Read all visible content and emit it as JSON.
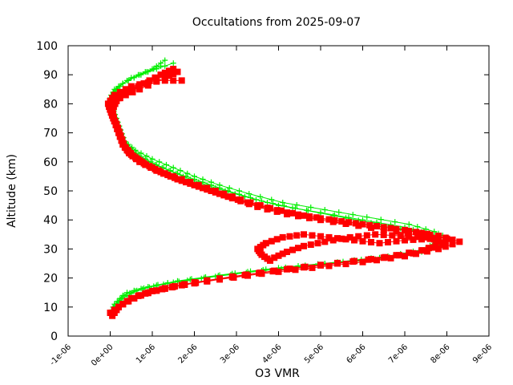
{
  "chart_data": {
    "type": "scatter",
    "title": "Occultations from 2025-09-07",
    "xlabel": "O3 VMR",
    "ylabel": "Altitude (km)",
    "xlim": [
      -1e-06,
      9e-06
    ],
    "ylim": [
      0,
      100
    ],
    "xticks": [
      -1e-06,
      0,
      1e-06,
      2e-06,
      3e-06,
      4e-06,
      5e-06,
      6e-06,
      7e-06,
      8e-06,
      9e-06
    ],
    "xtick_labels": [
      "-1e-06",
      "0e+00",
      "1e-06",
      "2e-06",
      "3e-06",
      "4e-06",
      "5e-06",
      "6e-06",
      "7e-06",
      "8e-06",
      "9e-06"
    ],
    "yticks": [
      0,
      10,
      20,
      30,
      40,
      50,
      60,
      70,
      80,
      90,
      100
    ],
    "ytick_labels": [
      "0",
      "10",
      "20",
      "30",
      "40",
      "50",
      "60",
      "70",
      "80",
      "90",
      "100"
    ],
    "series": [
      {
        "name": "profiles-green",
        "marker": "plus",
        "color": "#00ee00",
        "profiles": [
          {
            "points": [
              [
                0.0,
                8
              ],
              [
                1e-07,
                11
              ],
              [
                3e-07,
                14
              ],
              [
                8e-07,
                16.5
              ],
              [
                1.5e-06,
                18.5
              ],
              [
                2.5e-06,
                20.5
              ],
              [
                3.6e-06,
                22.5
              ],
              [
                5e-06,
                24.5
              ],
              [
                6.3e-06,
                26.5
              ],
              [
                7.3e-06,
                28.5
              ],
              [
                7.8e-06,
                31
              ],
              [
                7.9e-06,
                33
              ],
              [
                7.6e-06,
                35
              ],
              [
                7e-06,
                37.5
              ],
              [
                6e-06,
                40
              ],
              [
                5e-06,
                42.5
              ],
              [
                4e-06,
                45
              ],
              [
                3.2e-06,
                48
              ],
              [
                2.5e-06,
                51
              ],
              [
                1.9e-06,
                54
              ],
              [
                1.4e-06,
                57
              ],
              [
                9e-07,
                60
              ],
              [
                5.5e-07,
                63
              ],
              [
                3.5e-07,
                66
              ],
              [
                2.5e-07,
                70
              ],
              [
                1.5e-07,
                74
              ],
              [
                5e-08,
                78
              ],
              [
                0.0,
                82
              ],
              [
                1e-07,
                85
              ],
              [
                4e-07,
                88
              ],
              [
                9e-07,
                91
              ],
              [
                1.5e-06,
                94
              ]
            ]
          },
          {
            "points": [
              [
                5e-08,
                9
              ],
              [
                2e-07,
                12
              ],
              [
                4e-07,
                15
              ],
              [
                9e-07,
                17
              ],
              [
                1.6e-06,
                19
              ],
              [
                2.6e-06,
                21
              ],
              [
                3.7e-06,
                23
              ],
              [
                5.1e-06,
                25
              ],
              [
                6.4e-06,
                27
              ],
              [
                7.4e-06,
                29
              ],
              [
                7.9e-06,
                32
              ],
              [
                8e-06,
                34
              ],
              [
                7.7e-06,
                36
              ],
              [
                7.1e-06,
                38.5
              ],
              [
                6.1e-06,
                41
              ],
              [
                5.1e-06,
                43.5
              ],
              [
                4.1e-06,
                46
              ],
              [
                3.3e-06,
                49
              ],
              [
                2.6e-06,
                52
              ],
              [
                2e-06,
                55
              ],
              [
                1.5e-06,
                58
              ],
              [
                1e-06,
                61
              ],
              [
                6e-07,
                64
              ],
              [
                3.5e-07,
                67
              ],
              [
                2.5e-07,
                71
              ],
              [
                1.5e-07,
                75
              ],
              [
                5e-08,
                79
              ],
              [
                2e-08,
                83
              ],
              [
                2e-07,
                86
              ],
              [
                5e-07,
                89
              ],
              [
                1e-06,
                92
              ],
              [
                1.3e-06,
                95
              ]
            ]
          },
          {
            "points": [
              [
                1e-07,
                10
              ],
              [
                3e-07,
                13
              ],
              [
                6e-07,
                15.5
              ],
              [
                1.1e-06,
                17.5
              ],
              [
                1.9e-06,
                19.5
              ],
              [
                2.9e-06,
                21.5
              ],
              [
                4e-06,
                23.5
              ],
              [
                5.4e-06,
                25.5
              ],
              [
                6.6e-06,
                27.5
              ],
              [
                7.5e-06,
                30
              ],
              [
                7.8e-06,
                33.5
              ],
              [
                7.5e-06,
                35.5
              ],
              [
                6.9e-06,
                37
              ],
              [
                6.2e-06,
                39
              ],
              [
                5.3e-06,
                41.5
              ],
              [
                4.4e-06,
                44
              ],
              [
                3.6e-06,
                46.5
              ],
              [
                2.8e-06,
                50
              ],
              [
                2.2e-06,
                53
              ],
              [
                1.6e-06,
                56
              ],
              [
                1.1e-06,
                59
              ],
              [
                7e-07,
                62
              ],
              [
                4.5e-07,
                65
              ],
              [
                3e-07,
                68
              ],
              [
                2e-07,
                72
              ],
              [
                1e-07,
                76
              ],
              [
                5e-08,
                80
              ],
              [
                1e-07,
                84
              ],
              [
                3e-07,
                87
              ],
              [
                7e-07,
                90
              ],
              [
                1.2e-06,
                93
              ]
            ]
          }
        ]
      },
      {
        "name": "profiles-red",
        "marker": "square",
        "color": "#ff0000",
        "profiles": [
          {
            "points": [
              [
                5e-08,
                7
              ],
              [
                2e-07,
                10
              ],
              [
                5e-07,
                13
              ],
              [
                1e-06,
                15.5
              ],
              [
                1.7e-06,
                17.5
              ],
              [
                2.6e-06,
                19.5
              ],
              [
                3.6e-06,
                21.5
              ],
              [
                4.8e-06,
                23.5
              ],
              [
                6e-06,
                25.5
              ],
              [
                7e-06,
                27.5
              ],
              [
                7.8e-06,
                30
              ],
              [
                8.3e-06,
                32.5
              ],
              [
                7.8e-06,
                34.5
              ],
              [
                7e-06,
                36.5
              ],
              [
                6e-06,
                38.5
              ],
              [
                5e-06,
                40.5
              ],
              [
                4.2e-06,
                42.5
              ],
              [
                3.5e-06,
                45
              ],
              [
                2.8e-06,
                48
              ],
              [
                2.2e-06,
                51
              ],
              [
                1.6e-06,
                54
              ],
              [
                1.1e-06,
                57
              ],
              [
                7e-07,
                60
              ],
              [
                4.5e-07,
                63
              ],
              [
                3e-07,
                66
              ],
              [
                2e-07,
                70
              ],
              [
                1e-07,
                74
              ],
              [
                2e-08,
                77
              ],
              [
                -5e-08,
                80
              ],
              [
                1e-07,
                83
              ],
              [
                5e-07,
                86
              ],
              [
                1.1e-06,
                88
              ],
              [
                1.7e-06,
                88
              ]
            ]
          },
          {
            "points": [
              [
                0.0,
                8
              ],
              [
                3e-07,
                11
              ],
              [
                7e-07,
                14
              ],
              [
                1.3e-06,
                16.5
              ],
              [
                2e-06,
                18.5
              ],
              [
                2.9e-06,
                20.5
              ],
              [
                3.9e-06,
                22.5
              ],
              [
                5e-06,
                24.5
              ],
              [
                6.2e-06,
                26.5
              ],
              [
                7.2e-06,
                28.5
              ],
              [
                7.9e-06,
                31.5
              ],
              [
                8e-06,
                33.5
              ],
              [
                7.4e-06,
                35.5
              ],
              [
                6.5e-06,
                37.5
              ],
              [
                5.5e-06,
                39.5
              ],
              [
                4.6e-06,
                41.5
              ],
              [
                3.8e-06,
                44
              ],
              [
                3.1e-06,
                47
              ],
              [
                2.5e-06,
                50
              ],
              [
                1.9e-06,
                53
              ],
              [
                1.3e-06,
                56
              ],
              [
                8.5e-07,
                59
              ],
              [
                5.5e-07,
                62
              ],
              [
                3.5e-07,
                65
              ],
              [
                2.5e-07,
                69
              ],
              [
                1.5e-07,
                73
              ],
              [
                5e-08,
                76
              ],
              [
                0.0,
                79
              ],
              [
                2e-07,
                82
              ],
              [
                7e-07,
                85
              ],
              [
                1.3e-06,
                89
              ],
              [
                1.6e-06,
                91
              ]
            ]
          },
          {
            "points": [
              [
                1e-07,
                9
              ],
              [
                4e-07,
                12
              ],
              [
                9e-07,
                15
              ],
              [
                1.5e-06,
                17
              ],
              [
                2.3e-06,
                19
              ],
              [
                3.2e-06,
                21
              ],
              [
                4.2e-06,
                23
              ],
              [
                5.4e-06,
                25
              ],
              [
                6.5e-06,
                27
              ],
              [
                7.4e-06,
                29.5
              ],
              [
                7.9e-06,
                32
              ],
              [
                7.6e-06,
                34
              ],
              [
                6.8e-06,
                36
              ],
              [
                5.9e-06,
                38
              ],
              [
                5e-06,
                40
              ],
              [
                4.2e-06,
                42
              ],
              [
                3.5e-06,
                44.5
              ],
              [
                2.9e-06,
                47.5
              ],
              [
                2.3e-06,
                50.5
              ],
              [
                1.7e-06,
                53.5
              ],
              [
                1.2e-06,
                56.5
              ],
              [
                8e-07,
                59.5
              ],
              [
                5e-07,
                62.5
              ],
              [
                3e-07,
                66
              ],
              [
                2e-07,
                70
              ],
              [
                1e-07,
                74
              ],
              [
                5e-08,
                78
              ],
              [
                1.5e-07,
                81
              ],
              [
                4e-07,
                84
              ],
              [
                8e-07,
                87
              ],
              [
                1.2e-06,
                90
              ],
              [
                1.5e-06,
                92
              ]
            ]
          },
          {
            "points": [
              [
                3.8e-06,
                26
              ],
              [
                3.6e-06,
                28
              ],
              [
                3.5e-06,
                30
              ],
              [
                3.7e-06,
                32
              ],
              [
                4.1e-06,
                34
              ],
              [
                4.6e-06,
                35
              ],
              [
                5.2e-06,
                34
              ],
              [
                5.8e-06,
                33
              ],
              [
                6.4e-06,
                32
              ],
              [
                7e-06,
                33
              ],
              [
                7.6e-06,
                33.5
              ]
            ]
          },
          {
            "points": [
              [
                3.9e-06,
                27
              ],
              [
                4.2e-06,
                29
              ],
              [
                4.6e-06,
                31
              ],
              [
                5.1e-06,
                32.5
              ],
              [
                5.7e-06,
                34
              ],
              [
                6.3e-06,
                35
              ],
              [
                6.9e-06,
                34.5
              ],
              [
                7.5e-06,
                34
              ]
            ]
          }
        ]
      }
    ]
  }
}
